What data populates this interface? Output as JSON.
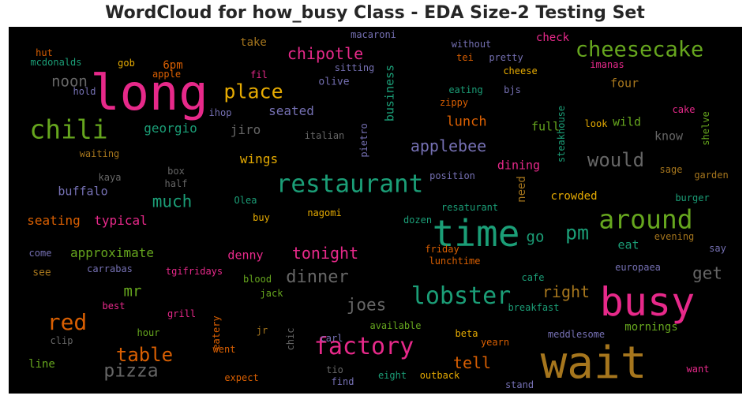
{
  "chart_data": {
    "type": "wordcloud",
    "title": "WordCloud for how_busy Class - EDA Size-2 Testing Set",
    "background": "#000000",
    "palette": [
      "#e7298a",
      "#d95f02",
      "#1b9e77",
      "#66a61e",
      "#e6ab02",
      "#7570b3",
      "#a6761d",
      "#666666"
    ],
    "words": [
      {
        "text": "long",
        "weight": 62,
        "color": "#e7298a"
      },
      {
        "text": "wait",
        "weight": 56,
        "color": "#a6761d"
      },
      {
        "text": "busy",
        "weight": 50,
        "color": "#e7298a"
      },
      {
        "text": "time",
        "weight": 46,
        "color": "#1b9e77"
      },
      {
        "text": "chili",
        "weight": 33,
        "color": "#66a61e"
      },
      {
        "text": "around",
        "weight": 33,
        "color": "#66a61e"
      },
      {
        "text": "restaurant",
        "weight": 31,
        "color": "#1b9e77"
      },
      {
        "text": "factory",
        "weight": 30,
        "color": "#e7298a"
      },
      {
        "text": "lobster",
        "weight": 30,
        "color": "#1b9e77"
      },
      {
        "text": "red",
        "weight": 28,
        "color": "#d95f02"
      },
      {
        "text": "cheesecake",
        "weight": 27,
        "color": "#66a61e"
      },
      {
        "text": "place",
        "weight": 25,
        "color": "#e6ab02"
      },
      {
        "text": "pm",
        "weight": 25,
        "color": "#1b9e77"
      },
      {
        "text": "would",
        "weight": 24,
        "color": "#666666"
      },
      {
        "text": "table",
        "weight": 24,
        "color": "#d95f02"
      },
      {
        "text": "pizza",
        "weight": 23,
        "color": "#666666"
      },
      {
        "text": "dinner",
        "weight": 22,
        "color": "#666666"
      },
      {
        "text": "joes",
        "weight": 21,
        "color": "#666666"
      },
      {
        "text": "get",
        "weight": 21,
        "color": "#666666"
      },
      {
        "text": "much",
        "weight": 21,
        "color": "#1b9e77"
      },
      {
        "text": "applebee",
        "weight": 20,
        "color": "#7570b3"
      },
      {
        "text": "chipotle",
        "weight": 20,
        "color": "#e7298a"
      },
      {
        "text": "tonight",
        "weight": 20,
        "color": "#e7298a"
      },
      {
        "text": "right",
        "weight": 20,
        "color": "#a6761d"
      },
      {
        "text": "tell",
        "weight": 20,
        "color": "#d95f02"
      },
      {
        "text": "mr",
        "weight": 19,
        "color": "#66a61e"
      },
      {
        "text": "noon",
        "weight": 19,
        "color": "#666666"
      },
      {
        "text": "go",
        "weight": 19,
        "color": "#1b9e77"
      },
      {
        "text": "lunch",
        "weight": 17,
        "color": "#d95f02"
      },
      {
        "text": "wings",
        "weight": 16,
        "color": "#e6ab02"
      },
      {
        "text": "jiro",
        "weight": 16,
        "color": "#666666"
      },
      {
        "text": "georgio",
        "weight": 16,
        "color": "#1b9e77"
      },
      {
        "text": "seating",
        "weight": 16,
        "color": "#d95f02"
      },
      {
        "text": "typical",
        "weight": 16,
        "color": "#e7298a"
      },
      {
        "text": "approximate",
        "weight": 16,
        "color": "#66a61e"
      },
      {
        "text": "seated",
        "weight": 16,
        "color": "#7570b3"
      },
      {
        "text": "business",
        "weight": 15,
        "color": "#1b9e77"
      },
      {
        "text": "full",
        "weight": 15,
        "color": "#66a61e"
      },
      {
        "text": "wild",
        "weight": 15,
        "color": "#66a61e"
      },
      {
        "text": "know",
        "weight": 15,
        "color": "#666666"
      },
      {
        "text": "buffalo",
        "weight": 15,
        "color": "#7570b3"
      },
      {
        "text": "denny",
        "weight": 15,
        "color": "#e7298a"
      },
      {
        "text": "dining",
        "weight": 15,
        "color": "#e7298a"
      },
      {
        "text": "eat",
        "weight": 15,
        "color": "#1b9e77"
      },
      {
        "text": "four",
        "weight": 15,
        "color": "#a6761d"
      },
      {
        "text": "take",
        "weight": 14,
        "color": "#a6761d"
      },
      {
        "text": "6pm",
        "weight": 14,
        "color": "#d95f02"
      },
      {
        "text": "check",
        "weight": 14,
        "color": "#e7298a"
      },
      {
        "text": "need",
        "weight": 14,
        "color": "#a6761d"
      },
      {
        "text": "crowded",
        "weight": 14,
        "color": "#e6ab02"
      },
      {
        "text": "mornings",
        "weight": 14,
        "color": "#66a61e"
      },
      {
        "text": "line",
        "weight": 14,
        "color": "#66a61e"
      },
      {
        "text": "see",
        "weight": 13,
        "color": "#a6761d"
      },
      {
        "text": "olive",
        "weight": 13,
        "color": "#7570b3"
      },
      {
        "text": "macaroni",
        "weight": 12,
        "color": "#7570b3"
      },
      {
        "text": "without",
        "weight": 12,
        "color": "#7570b3"
      },
      {
        "text": "tei",
        "weight": 12,
        "color": "#d95f02"
      },
      {
        "text": "pretty",
        "weight": 12,
        "color": "#7570b3"
      },
      {
        "text": "cheese",
        "weight": 12,
        "color": "#e6ab02"
      },
      {
        "text": "imanas",
        "weight": 12,
        "color": "#e7298a"
      },
      {
        "text": "steakhouse",
        "weight": 12,
        "color": "#1b9e77"
      },
      {
        "text": "shelve",
        "weight": 12,
        "color": "#66a61e"
      },
      {
        "text": "cake",
        "weight": 12,
        "color": "#e7298a"
      },
      {
        "text": "look",
        "weight": 12,
        "color": "#e6ab02"
      },
      {
        "text": "pietro",
        "weight": 12,
        "color": "#7570b3"
      },
      {
        "text": "italian",
        "weight": 12,
        "color": "#666666"
      },
      {
        "text": "ihop",
        "weight": 12,
        "color": "#7570b3"
      },
      {
        "text": "fil",
        "weight": 12,
        "color": "#e7298a"
      },
      {
        "text": "sitting",
        "weight": 12,
        "color": "#7570b3"
      },
      {
        "text": "eating",
        "weight": 12,
        "color": "#1b9e77"
      },
      {
        "text": "bjs",
        "weight": 12,
        "color": "#7570b3"
      },
      {
        "text": "zippy",
        "weight": 12,
        "color": "#d95f02"
      },
      {
        "text": "hut",
        "weight": 12,
        "color": "#d95f02"
      },
      {
        "text": "mcdonalds",
        "weight": 12,
        "color": "#1b9e77"
      },
      {
        "text": "gob",
        "weight": 12,
        "color": "#e6ab02"
      },
      {
        "text": "apple",
        "weight": 12,
        "color": "#d95f02"
      },
      {
        "text": "hold",
        "weight": 12,
        "color": "#7570b3"
      },
      {
        "text": "waiting",
        "weight": 12,
        "color": "#a6761d"
      },
      {
        "text": "kaya",
        "weight": 12,
        "color": "#666666"
      },
      {
        "text": "box",
        "weight": 12,
        "color": "#666666"
      },
      {
        "text": "half",
        "weight": 12,
        "color": "#666666"
      },
      {
        "text": "position",
        "weight": 12,
        "color": "#7570b3"
      },
      {
        "text": "sage",
        "weight": 12,
        "color": "#a6761d"
      },
      {
        "text": "garden",
        "weight": 12,
        "color": "#a6761d"
      },
      {
        "text": "burger",
        "weight": 12,
        "color": "#1b9e77"
      },
      {
        "text": "Olea",
        "weight": 12,
        "color": "#1b9e77"
      },
      {
        "text": "buy",
        "weight": 12,
        "color": "#e6ab02"
      },
      {
        "text": "nagomi",
        "weight": 12,
        "color": "#e6ab02"
      },
      {
        "text": "resaturant",
        "weight": 12,
        "color": "#1b9e77"
      },
      {
        "text": "dozen",
        "weight": 12,
        "color": "#1b9e77"
      },
      {
        "text": "evening",
        "weight": 12,
        "color": "#a6761d"
      },
      {
        "text": "friday",
        "weight": 12,
        "color": "#d95f02"
      },
      {
        "text": "lunchtime",
        "weight": 12,
        "color": "#d95f02"
      },
      {
        "text": "say",
        "weight": 12,
        "color": "#7570b3"
      },
      {
        "text": "come",
        "weight": 12,
        "color": "#7570b3"
      },
      {
        "text": "carrabas",
        "weight": 12,
        "color": "#7570b3"
      },
      {
        "text": "tgifridays",
        "weight": 12,
        "color": "#e7298a"
      },
      {
        "text": "blood",
        "weight": 12,
        "color": "#66a61e"
      },
      {
        "text": "cafe",
        "weight": 12,
        "color": "#1b9e77"
      },
      {
        "text": "europaea",
        "weight": 12,
        "color": "#7570b3"
      },
      {
        "text": "jack",
        "weight": 12,
        "color": "#66a61e"
      },
      {
        "text": "best",
        "weight": 12,
        "color": "#e7298a"
      },
      {
        "text": "grill",
        "weight": 12,
        "color": "#e7298a"
      },
      {
        "text": "eatery",
        "weight": 12,
        "color": "#d95f02"
      },
      {
        "text": "breakfast",
        "weight": 12,
        "color": "#1b9e77"
      },
      {
        "text": "hour",
        "weight": 12,
        "color": "#66a61e"
      },
      {
        "text": "jr",
        "weight": 12,
        "color": "#a6761d"
      },
      {
        "text": "chic",
        "weight": 12,
        "color": "#666666"
      },
      {
        "text": "carl",
        "weight": 12,
        "color": "#7570b3"
      },
      {
        "text": "available",
        "weight": 12,
        "color": "#66a61e"
      },
      {
        "text": "beta",
        "weight": 12,
        "color": "#e6ab02"
      },
      {
        "text": "meddlesome",
        "weight": 12,
        "color": "#7570b3"
      },
      {
        "text": "clip",
        "weight": 12,
        "color": "#666666"
      },
      {
        "text": "went",
        "weight": 12,
        "color": "#d95f02"
      },
      {
        "text": "yearn",
        "weight": 12,
        "color": "#d95f02"
      },
      {
        "text": "expect",
        "weight": 12,
        "color": "#d95f02"
      },
      {
        "text": "tio",
        "weight": 12,
        "color": "#666666"
      },
      {
        "text": "eight",
        "weight": 12,
        "color": "#1b9e77"
      },
      {
        "text": "outback",
        "weight": 12,
        "color": "#e6ab02"
      },
      {
        "text": "find",
        "weight": 12,
        "color": "#7570b3"
      },
      {
        "text": "stand",
        "weight": 12,
        "color": "#7570b3"
      },
      {
        "text": "want",
        "weight": 12,
        "color": "#e7298a"
      }
    ]
  }
}
